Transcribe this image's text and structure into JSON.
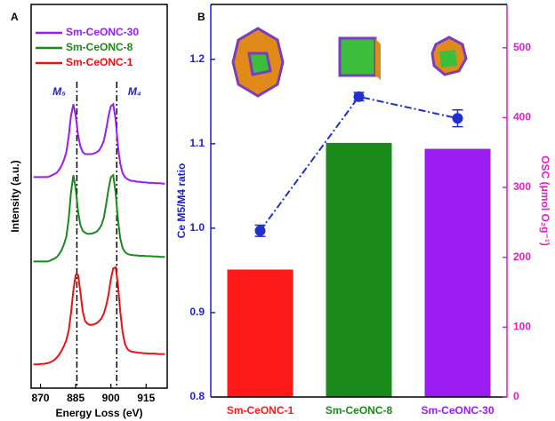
{
  "chart_data": [
    {
      "type": "line",
      "panel_label": "A",
      "x_label": "Energy Loss (eV)",
      "y_label": "Intensity (a.u.)",
      "x": [
        867,
        868,
        869,
        870,
        871,
        872,
        873,
        874,
        875,
        876,
        877,
        878,
        879,
        880,
        881,
        882,
        883,
        884,
        885,
        886,
        887,
        888,
        889,
        890,
        891,
        892,
        893,
        894,
        895,
        896,
        897,
        898,
        899,
        900,
        901,
        902,
        903,
        904,
        905,
        906,
        907,
        908,
        909,
        910,
        911,
        912,
        913,
        914,
        915,
        916,
        917,
        918,
        919,
        920,
        921,
        922,
        923
      ],
      "xlim": [
        866,
        924
      ],
      "xticks": [
        870,
        885,
        900,
        915
      ],
      "ylim": [
        0,
        10
      ],
      "vlines": [
        885.5,
        902.5
      ],
      "annotations": [
        "M₅",
        "M₄"
      ],
      "legend": "upper right",
      "series": [
        {
          "name": "Sm-CeONC-30",
          "color": "#9b1cf0",
          "values": [
            5.5,
            5.5,
            5.5,
            5.5,
            5.5,
            5.5,
            5.5,
            5.52,
            5.55,
            5.58,
            5.62,
            5.7,
            5.8,
            5.95,
            6.15,
            6.55,
            7.1,
            7.4,
            7.1,
            6.6,
            6.3,
            6.15,
            6.1,
            6.1,
            6.1,
            6.1,
            6.12,
            6.15,
            6.2,
            6.3,
            6.45,
            6.75,
            7.1,
            7.35,
            7.4,
            7.0,
            6.3,
            5.85,
            5.6,
            5.5,
            5.45,
            5.42,
            5.4,
            5.4,
            5.38,
            5.38,
            5.37,
            5.36,
            5.36,
            5.35,
            5.35,
            5.35,
            5.34,
            5.34,
            5.34,
            5.33,
            5.33
          ]
        },
        {
          "name": "Sm-CeONC-8",
          "color": "#1a8a1a",
          "values": [
            3.3,
            3.3,
            3.3,
            3.3,
            3.3,
            3.3,
            3.3,
            3.32,
            3.35,
            3.38,
            3.42,
            3.5,
            3.6,
            3.75,
            3.95,
            4.4,
            5.1,
            5.55,
            5.2,
            4.6,
            4.25,
            4.1,
            4.05,
            4.02,
            4.02,
            4.03,
            4.05,
            4.08,
            4.15,
            4.25,
            4.45,
            4.8,
            5.2,
            5.5,
            5.55,
            5.1,
            4.4,
            3.9,
            3.65,
            3.55,
            3.5,
            3.48,
            3.47,
            3.46,
            3.46,
            3.45,
            3.45,
            3.45,
            3.44,
            3.44,
            3.44,
            3.43,
            3.43,
            3.43,
            3.42,
            3.42,
            3.42
          ]
        },
        {
          "name": "Sm-CeONC-1",
          "color": "#ee1111",
          "values": [
            0.62,
            0.62,
            0.62,
            0.63,
            0.63,
            0.64,
            0.65,
            0.67,
            0.7,
            0.74,
            0.8,
            0.88,
            0.98,
            1.1,
            1.25,
            1.5,
            1.95,
            2.55,
            2.95,
            2.95,
            2.5,
            2.0,
            1.75,
            1.68,
            1.65,
            1.65,
            1.67,
            1.7,
            1.75,
            1.82,
            1.95,
            2.15,
            2.45,
            2.85,
            3.12,
            3.15,
            2.7,
            2.0,
            1.45,
            1.15,
            1.02,
            0.97,
            0.95,
            0.94,
            0.93,
            0.92,
            0.92,
            0.91,
            0.91,
            0.9,
            0.9,
            0.9,
            0.9,
            0.89,
            0.89,
            0.89,
            0.89
          ]
        }
      ]
    },
    {
      "type": "bar_line",
      "panel_label": "B",
      "y_label": "Ce M5/M4 ratio",
      "y2_label": "OSC (μmol O₂g⁻¹)",
      "categories": [
        "Sm-CeONC-1",
        "Sm-CeONC-8",
        "Sm-CeONC-30"
      ],
      "values": [
        0.951,
        1.101,
        1.094
      ],
      "colors": [
        "#ff1a1a",
        "#1a8a1a",
        "#9b1cf0"
      ],
      "ylim": [
        0.8,
        1.265
      ],
      "yticks": [
        0.8,
        0.9,
        {
          "value": 1,
          "label": "1.0"
        },
        1.1,
        1.2
      ],
      "y2lim": [
        0,
        562
      ],
      "y2ticks": [
        0,
        100,
        200,
        300,
        400,
        500
      ],
      "y_color": "#2020d0",
      "y2_color": "#e020c8",
      "line": {
        "color": "#2030d0",
        "axis": "y2",
        "values": [
          238,
          430,
          399
        ],
        "errors": [
          8,
          6,
          12
        ]
      }
    }
  ]
}
